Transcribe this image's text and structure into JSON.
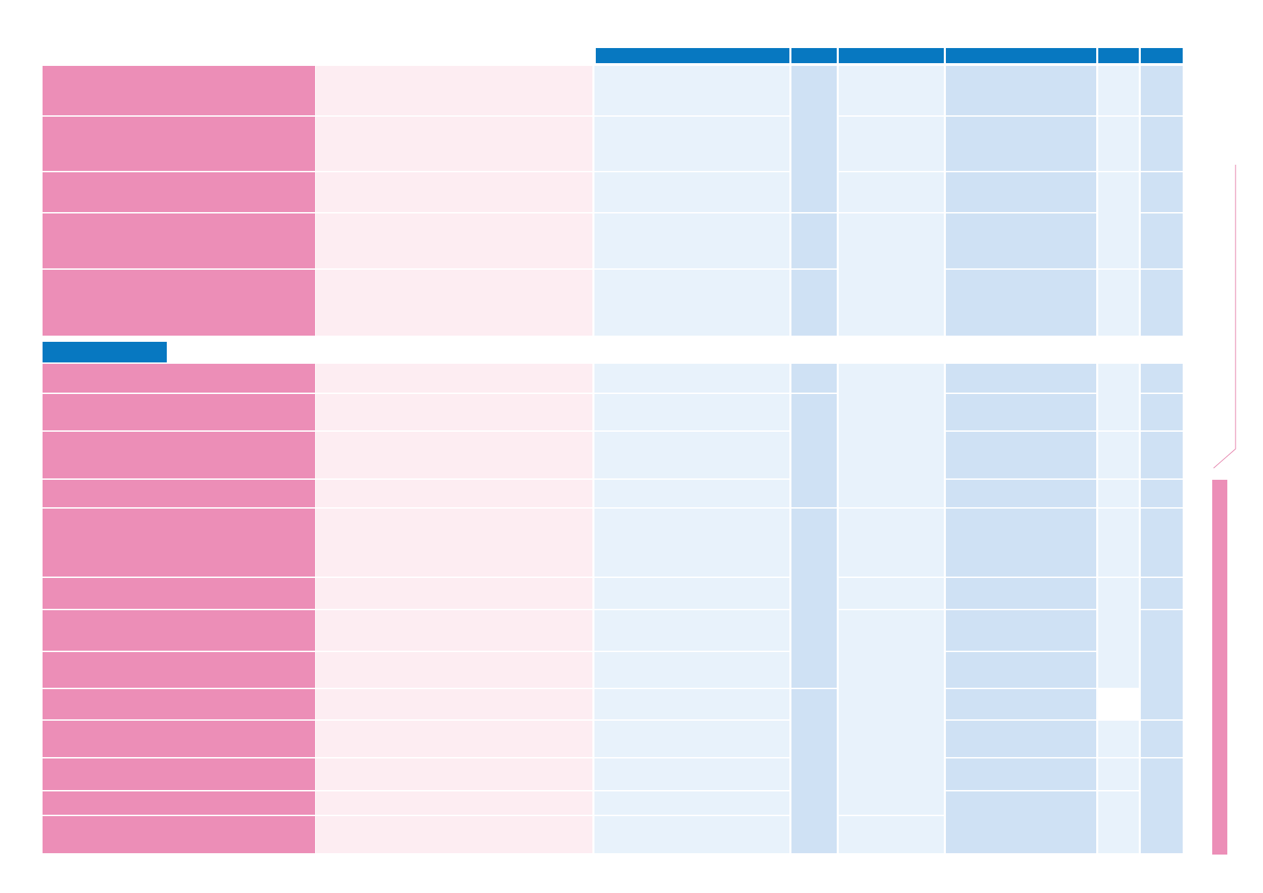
{
  "document": {
    "title": "",
    "section_label": "",
    "side_label": ""
  },
  "colors": {
    "header_blue": "#0778c1",
    "pink_label": "#ec8eb7",
    "pink_light": "#fdedf2",
    "blue_light": "#e8f2fb",
    "blue_mid": "#cfe1f4",
    "rule": "#ffffff",
    "page": "#ffffff"
  },
  "table": {
    "header": [
      "",
      "",
      "",
      "",
      "",
      ""
    ],
    "group_one_rows": [
      [
        "",
        "",
        "",
        "",
        "",
        "",
        "",
        ""
      ],
      [
        "",
        "",
        "",
        "",
        "",
        "",
        "",
        ""
      ],
      [
        "",
        "",
        "",
        "",
        "",
        "",
        "",
        ""
      ],
      [
        "",
        "",
        "",
        "",
        "",
        "",
        "",
        ""
      ],
      [
        "",
        "",
        "",
        "",
        "",
        "",
        "",
        ""
      ]
    ],
    "group_two_rows": [
      [
        "",
        "",
        "",
        "",
        "",
        "",
        "",
        ""
      ],
      [
        "",
        "",
        "",
        "",
        "",
        "",
        "",
        ""
      ],
      [
        "",
        "",
        "",
        "",
        "",
        "",
        "",
        ""
      ],
      [
        "",
        "",
        "",
        "",
        "",
        "",
        "",
        ""
      ],
      [
        "",
        "",
        "",
        "",
        "",
        "",
        "",
        ""
      ],
      [
        "",
        "",
        "",
        "",
        "",
        "",
        "",
        ""
      ],
      [
        "",
        "",
        "",
        "",
        "",
        "",
        "",
        ""
      ],
      [
        "",
        "",
        "",
        "",
        "",
        "",
        "",
        ""
      ],
      [
        "",
        "",
        "",
        "",
        "",
        "",
        "",
        ""
      ],
      [
        "",
        "",
        "",
        "",
        "",
        "",
        "",
        ""
      ],
      [
        "",
        "",
        "",
        "",
        "",
        "",
        "",
        ""
      ],
      [
        "",
        "",
        "",
        "",
        "",
        "",
        "",
        ""
      ],
      [
        "",
        "",
        "",
        "",
        "",
        "",
        "",
        ""
      ]
    ]
  }
}
